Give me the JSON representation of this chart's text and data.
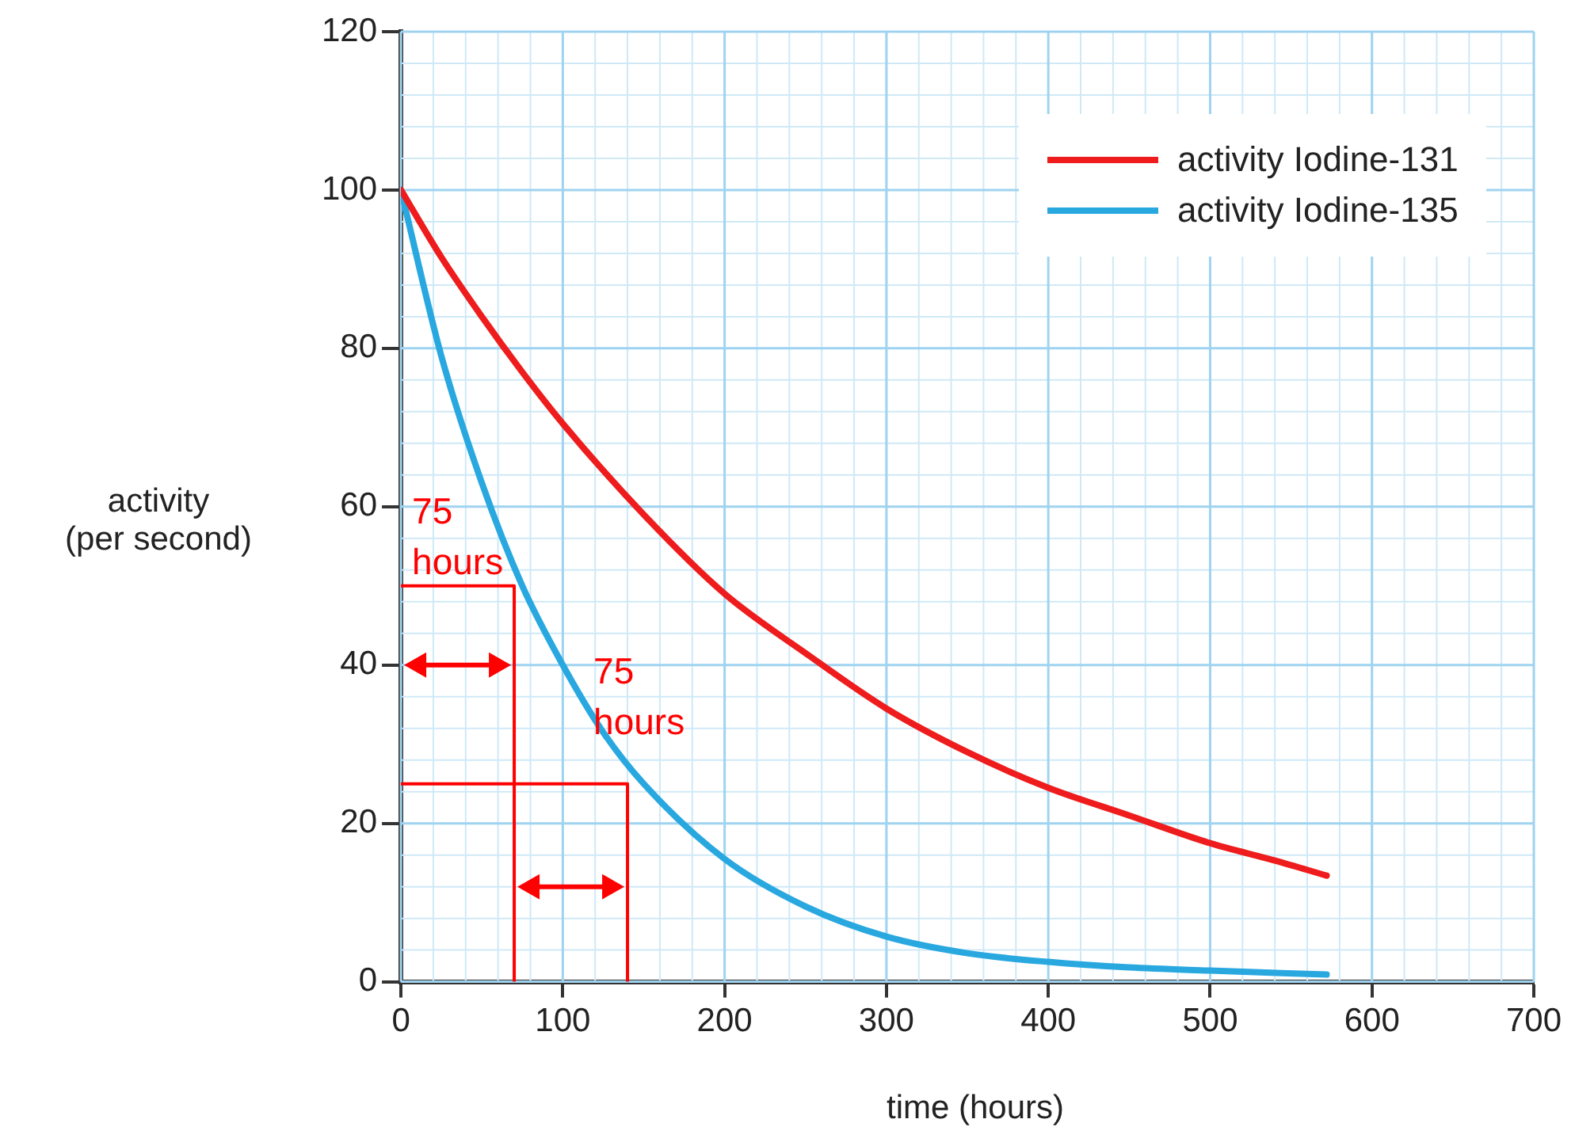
{
  "chart_data": {
    "type": "line",
    "xlabel": "time (hours)",
    "ylabel": "activity\n(per second)",
    "xlim": [
      0,
      700
    ],
    "xticks": [
      0,
      100,
      200,
      300,
      400,
      500,
      600,
      700
    ],
    "ylim": [
      0,
      120
    ],
    "yticks": [
      0,
      20,
      40,
      60,
      80,
      100,
      120
    ],
    "grid": true,
    "legend": "top right",
    "marker": "none",
    "line_style": "solid",
    "series": [
      {
        "name": "activity Iodine-131",
        "color": "#ee1c1c",
        "x": [
          0,
          25,
          50,
          75,
          100,
          150,
          200,
          250,
          300,
          350,
          400,
          450,
          500,
          540,
          572
        ],
        "values": [
          100,
          91.5,
          84,
          77,
          70.5,
          59,
          49,
          41.5,
          34.5,
          29,
          24.5,
          21,
          17.5,
          15.3,
          13.4
        ]
      },
      {
        "name": "activity Iodine-135",
        "color": "#29a8e0",
        "x": [
          0,
          25,
          50,
          75,
          100,
          125,
          150,
          200,
          250,
          300,
          350,
          400,
          450,
          500,
          572
        ],
        "values": [
          100,
          79,
          63,
          50,
          40,
          31.5,
          25,
          15.5,
          9.5,
          5.7,
          3.6,
          2.5,
          1.8,
          1.4,
          0.9
        ]
      },
      {
        "color": "#ff0000",
        "x": [
          0,
          70,
          70
        ],
        "values": [
          50,
          50,
          0
        ]
      },
      {
        "color": "#ff0000",
        "x": [
          0,
          140,
          140
        ],
        "values": [
          25,
          25,
          0
        ]
      }
    ],
    "annotations": [
      "75 hours",
      "75 hours"
    ]
  }
}
